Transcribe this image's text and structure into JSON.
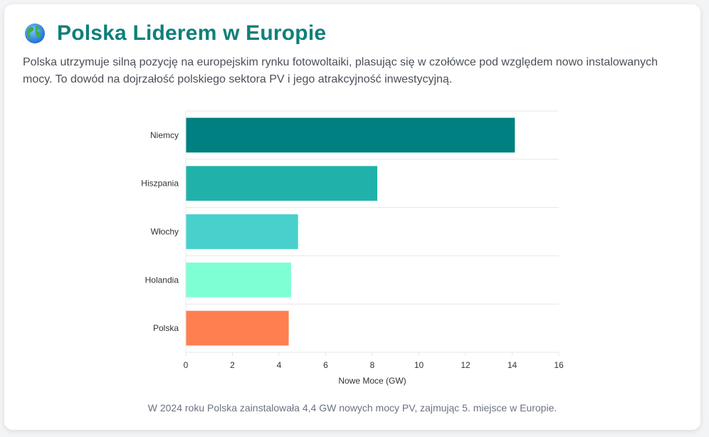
{
  "header": {
    "title": "Polska Liderem w Europie",
    "icon": "globe-icon"
  },
  "description": "Polska utrzymuje silną pozycję na europejskim rynku fotowoltaiki, plasując się w czołówce pod względem nowo instalowanych mocy. To dowód na dojrzałość polskiego sektora PV i jego atrakcyjność inwestycyjną.",
  "caption": "W 2024 roku Polska zainstalowała 4,4 GW nowych mocy PV, zajmując 5. miejsce w Europie.",
  "chart_data": {
    "type": "bar",
    "orientation": "horizontal",
    "categories": [
      "Niemcy",
      "Hiszpania",
      "Włochy",
      "Holandia",
      "Polska"
    ],
    "values": [
      14.1,
      8.2,
      4.8,
      4.5,
      4.4
    ],
    "colors": [
      "#008080",
      "#20b2aa",
      "#48d1cc",
      "#7fffd4",
      "#ff7f50"
    ],
    "xlabel": "Nowe Moce (GW)",
    "ylabel": "",
    "xlim": [
      0,
      16
    ],
    "xticks": [
      0,
      2,
      4,
      6,
      8,
      10,
      12,
      14,
      16
    ],
    "grid": true,
    "legend": "none"
  },
  "colors": {
    "title": "#0f7f7a",
    "grid": "#e5e7eb"
  }
}
